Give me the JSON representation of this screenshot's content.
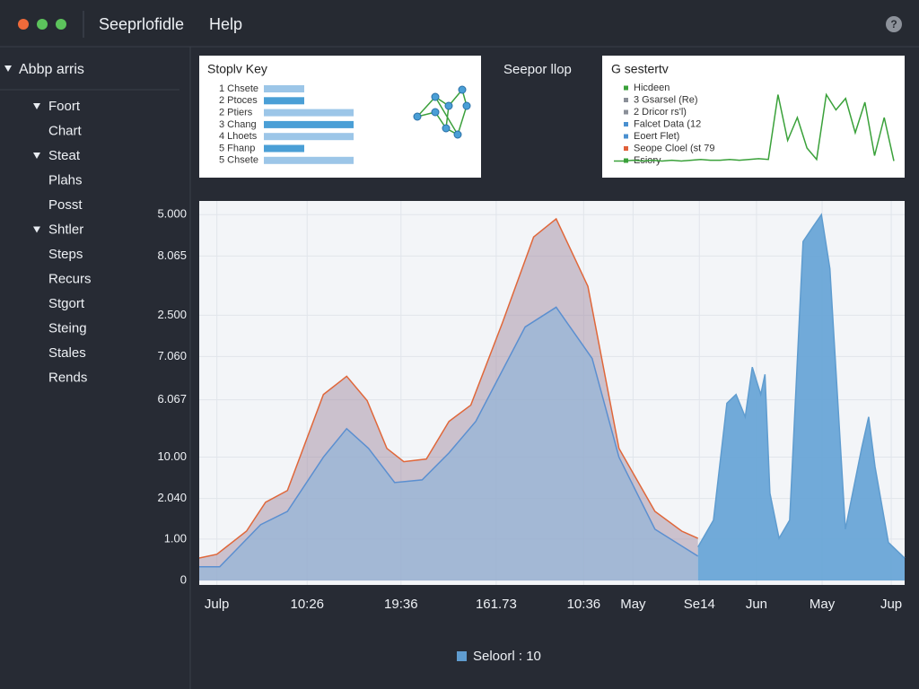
{
  "window": {
    "menu": [
      "Seeprlofidle",
      "Help"
    ],
    "help_icon": "?"
  },
  "sidebar": {
    "title": "Abbp arris",
    "groups": [
      {
        "label": "Foort",
        "items": [
          "Chart"
        ]
      },
      {
        "label": "Steat",
        "items": [
          "Plahs",
          "Posst"
        ]
      },
      {
        "label": "Shtler",
        "items": [
          "Steps",
          "Recurs",
          "Stgort",
          "Steing",
          "Stales",
          "Rends"
        ]
      }
    ]
  },
  "key_panel": {
    "title": "Stoplv Key",
    "rows": [
      {
        "label": "1 Chsete",
        "value": 45
      },
      {
        "label": "2 Ptoces",
        "value": 45
      },
      {
        "label": "2 Ptiers",
        "value": 100
      },
      {
        "label": "3 Chang",
        "value": 100
      },
      {
        "label": "4 Lhoets",
        "value": 100
      },
      {
        "label": "5 Fhanp",
        "value": 45
      },
      {
        "label": "5 Chsete",
        "value": 100
      }
    ]
  },
  "middle_title": "Seepor llop",
  "legend_panel": {
    "title": "G sestertv",
    "items": [
      {
        "label": "Hicdeen",
        "color": "#3aa13a"
      },
      {
        "label": "3 Gsarsel (Re)",
        "color": "#8a8f98"
      },
      {
        "label": "2 Dricor rs'l)",
        "color": "#8a8f98"
      },
      {
        "label": "Falcet Data (12",
        "color": "#4a90d0"
      },
      {
        "label": "Eoert Flet)",
        "color": "#4a90d0"
      },
      {
        "label": "Seope Cloel (st 79",
        "color": "#e0603a"
      },
      {
        "label": "Esiory",
        "color": "#3aa13a"
      }
    ],
    "sparkline": [
      3,
      3,
      4,
      3,
      4,
      3,
      4,
      3,
      4,
      5,
      4,
      4,
      5,
      4,
      5,
      6,
      5,
      90,
      30,
      60,
      20,
      5,
      90,
      70,
      85,
      40,
      80,
      10,
      60,
      3
    ]
  },
  "chart_data": {
    "type": "area",
    "xlim": [
      0,
      100
    ],
    "xticks": [
      {
        "value": 2.5,
        "label": "Julp"
      },
      {
        "value": 15.3,
        "label": "10:26"
      },
      {
        "value": 28.6,
        "label": "19:36"
      },
      {
        "value": 42.1,
        "label": "161.73"
      },
      {
        "value": 54.5,
        "label": "10:36"
      },
      {
        "value": 61.5,
        "label": "May"
      },
      {
        "value": 70.9,
        "label": "Se14"
      },
      {
        "value": 79,
        "label": "Jun"
      },
      {
        "value": 88.3,
        "label": "May"
      },
      {
        "value": 98.1,
        "label": "Jup"
      }
    ],
    "ylim": [
      0,
      10
    ],
    "yticks": [
      0,
      {
        "value": 1.09,
        "label": "1.00"
      },
      {
        "value": 2.16,
        "label": "2.040"
      },
      {
        "value": 3.25,
        "label": "10.00"
      },
      {
        "value": 4.76,
        "label": "6.067"
      },
      {
        "value": 5.9,
        "label": "7.060"
      },
      {
        "value": 6.99,
        "label": "2.500"
      },
      {
        "value": 8.55,
        "label": "8.065"
      },
      {
        "value": 9.64,
        "label": "5.000"
      }
    ],
    "grid": true,
    "series": [
      {
        "color": "#e0673a",
        "x": [
          0,
          2.5,
          6.7,
          9.4,
          12.5,
          17.6,
          20.9,
          23.8,
          26.6,
          29.0,
          32.2,
          35.4,
          38.5,
          43.0,
          47.4,
          50.6,
          55.1,
          59.5,
          64.6,
          68.4,
          70.7
        ],
        "values": [
          0.59,
          0.69,
          1.3,
          2.06,
          2.37,
          4.9,
          5.38,
          4.74,
          3.48,
          3.13,
          3.2,
          4.19,
          4.62,
          6.8,
          9.05,
          9.53,
          7.75,
          3.48,
          1.82,
          1.3,
          1.11
        ]
      },
      {
        "color": "#5b8fd0",
        "x": [
          0,
          2.9,
          8.7,
          12.5,
          17.6,
          20.9,
          24.0,
          27.7,
          31.6,
          35.4,
          39.2,
          46.2,
          50.6,
          55.7,
          59.5,
          64.6,
          70.7
        ],
        "values": [
          0.36,
          0.36,
          1.47,
          1.82,
          3.25,
          4.0,
          3.48,
          2.58,
          2.65,
          3.36,
          4.19,
          6.68,
          7.2,
          5.85,
          3.25,
          1.35,
          0.64
        ]
      },
      {
        "name": "Seloorl : 10",
        "color": "#5f9ccf",
        "x": [
          70.7,
          72.9,
          74.8,
          76.1,
          77.4,
          78.4,
          79.6,
          80.2,
          80.9,
          82.2,
          83.7,
          85.6,
          86.9,
          88.2,
          89.4,
          91.6,
          93.9,
          94.9,
          95.8,
          97.7,
          100
        ],
        "values": [
          0.88,
          1.59,
          4.67,
          4.9,
          4.31,
          5.62,
          4.9,
          5.43,
          2.3,
          1.11,
          1.59,
          8.93,
          9.29,
          9.64,
          8.22,
          1.35,
          3.48,
          4.31,
          3.0,
          1.0,
          0.59
        ]
      }
    ]
  }
}
